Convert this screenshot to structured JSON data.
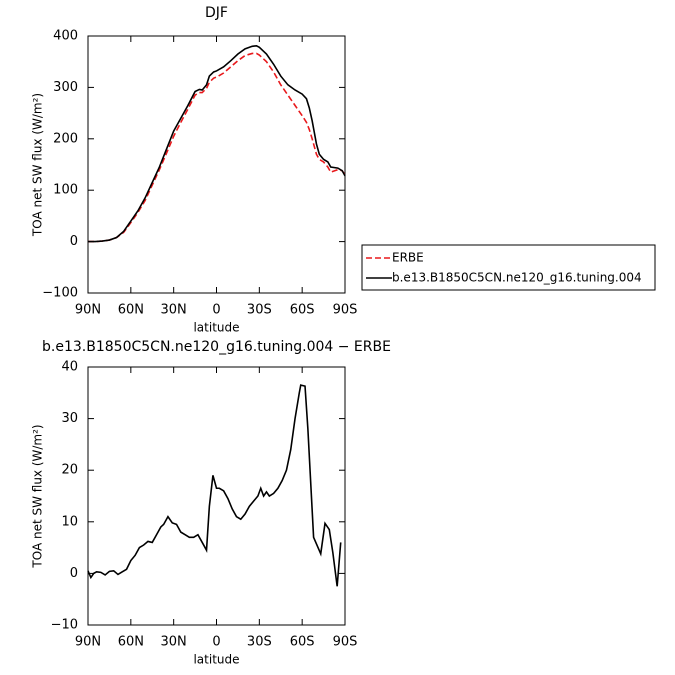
{
  "chart_data": [
    {
      "type": "line",
      "title": "DJF",
      "xlabel": "latitude",
      "ylabel": "TOA net SW flux (W/m²)",
      "x": [
        90,
        85,
        80,
        75,
        70,
        65,
        60,
        55,
        50,
        45,
        40,
        35,
        30,
        25,
        20,
        15,
        12,
        10,
        7,
        5,
        2,
        0,
        -5,
        -10,
        -15,
        -20,
        -25,
        -28,
        -30,
        -35,
        -40,
        -45,
        -50,
        -55,
        -60,
        -63,
        -65,
        -67,
        -70,
        -72,
        -75,
        -78,
        -80,
        -85,
        -88,
        -90
      ],
      "series": [
        {
          "name": "ERBE",
          "color": "#e8191c",
          "dashed": true,
          "values": [
            0,
            0,
            1,
            3,
            8,
            18,
            37,
            57,
            80,
            110,
            140,
            172,
            205,
            232,
            258,
            285,
            290,
            290,
            298,
            310,
            318,
            320,
            328,
            340,
            352,
            362,
            366,
            366,
            363,
            350,
            330,
            305,
            285,
            265,
            245,
            232,
            218,
            200,
            170,
            160,
            155,
            145,
            135,
            140,
            138,
            130
          ]
        },
        {
          "name": "b.e13.B1850C5CN.ne120_g16.tuning.004",
          "color": "#000000",
          "dashed": false,
          "values": [
            0,
            0,
            1,
            3,
            8,
            20,
            40,
            60,
            85,
            115,
            145,
            180,
            215,
            240,
            265,
            292,
            296,
            295,
            305,
            322,
            330,
            332,
            340,
            352,
            365,
            375,
            380,
            381,
            378,
            365,
            345,
            322,
            305,
            295,
            287,
            278,
            260,
            235,
            190,
            170,
            160,
            155,
            145,
            143,
            138,
            128
          ]
        }
      ],
      "xlim": [
        90,
        -90
      ],
      "xticks": [
        {
          "value": 90,
          "label": "90N"
        },
        {
          "value": 60,
          "label": "60N"
        },
        {
          "value": 30,
          "label": "30N"
        },
        {
          "value": 0,
          "label": "0"
        },
        {
          "value": -30,
          "label": "30S"
        },
        {
          "value": -60,
          "label": "60S"
        },
        {
          "value": -90,
          "label": "90S"
        }
      ],
      "ylim": [
        -100,
        400
      ],
      "yticks": [
        {
          "value": -100,
          "label": "−100"
        },
        0,
        100,
        200,
        300,
        400
      ],
      "legend": "right"
    },
    {
      "type": "line",
      "title": "b.e13.B1850C5CN.ne120_g16.tuning.004 − ERBE",
      "xlabel": "latitude",
      "ylabel": "TOA net SW flux (W/m²)",
      "x": [
        90,
        88,
        86,
        84,
        81,
        78,
        75,
        72,
        69,
        66,
        63,
        60,
        57,
        54,
        51,
        48,
        45,
        42,
        39,
        37,
        34,
        31,
        28,
        25,
        22,
        19,
        16,
        13,
        10,
        7,
        5,
        2.5,
        0,
        -2,
        -5,
        -8,
        -11,
        -14,
        -17,
        -20,
        -23,
        -26,
        -29,
        -31,
        -33,
        -35,
        -37,
        -40,
        -43,
        -46,
        -49,
        -52,
        -55,
        -58,
        -59,
        -62,
        -64,
        -68,
        -73,
        -76,
        -79,
        -81.5,
        -84.5,
        -87
      ],
      "series": [
        {
          "color": "#000000",
          "dashed": false,
          "values": [
            0.5,
            -0.8,
            0,
            0.3,
            0.2,
            -0.3,
            0.4,
            0.5,
            -0.2,
            0.3,
            0.8,
            2.5,
            3.5,
            5,
            5.5,
            6.2,
            6,
            7.5,
            9,
            9.5,
            11,
            9.8,
            9.5,
            8,
            7.5,
            7,
            7,
            7.5,
            6,
            4.5,
            13,
            19,
            16.5,
            16.5,
            16,
            14.5,
            12.5,
            11,
            10.5,
            11.5,
            13,
            14,
            15,
            16.5,
            15,
            15.8,
            15,
            15.5,
            16.5,
            18,
            20,
            24,
            30,
            35,
            36.5,
            36.3,
            28,
            7,
            3.8,
            9.7,
            8.5,
            4,
            -2.5,
            6
          ]
        }
      ],
      "xlim": [
        90,
        -90
      ],
      "xticks": [
        {
          "value": 90,
          "label": "90N"
        },
        {
          "value": 60,
          "label": "60N"
        },
        {
          "value": 30,
          "label": "30N"
        },
        {
          "value": 0,
          "label": "0"
        },
        {
          "value": -30,
          "label": "30S"
        },
        {
          "value": -60,
          "label": "60S"
        },
        {
          "value": -90,
          "label": "90S"
        }
      ],
      "ylim": [
        -10,
        40
      ],
      "yticks": [
        {
          "value": -10,
          "label": "−10"
        },
        0,
        10,
        20,
        30,
        40
      ]
    }
  ]
}
